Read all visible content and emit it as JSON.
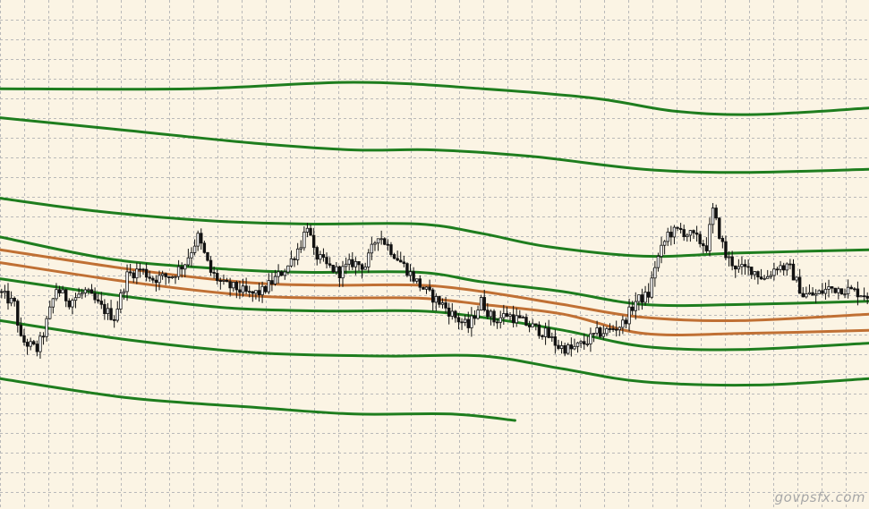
{
  "watermark": "govpsfx.com",
  "colors": {
    "background": "#fbf4e4",
    "grid": "#b9b9b9",
    "candle": "#111111",
    "band_outer": "#1e7d1e",
    "band_mid": "#1e7d1e",
    "band_inner": "#c07034"
  },
  "chart_data": {
    "type": "candlestick",
    "grid": true,
    "xlim": [
      0,
      270
    ],
    "ylim": [
      0,
      100
    ],
    "bands": [
      {
        "key": "g_top_1",
        "color_key": "band_outer",
        "points": [
          [
            0,
            103
          ],
          [
            60,
            103
          ],
          [
            110,
            105
          ],
          [
            150,
            103
          ],
          [
            185,
            100
          ],
          [
            210,
            96
          ],
          [
            235,
            95
          ],
          [
            270,
            97
          ]
        ]
      },
      {
        "key": "g_top_2",
        "color_key": "band_outer",
        "points": [
          [
            0,
            94
          ],
          [
            40,
            90
          ],
          [
            80,
            86
          ],
          [
            110,
            84
          ],
          [
            135,
            84
          ],
          [
            165,
            82
          ],
          [
            200,
            78
          ],
          [
            230,
            77
          ],
          [
            270,
            78
          ]
        ]
      },
      {
        "key": "g_top_3",
        "color_key": "band_outer",
        "points": [
          [
            0,
            69
          ],
          [
            30,
            65
          ],
          [
            65,
            62
          ],
          [
            95,
            61
          ],
          [
            130,
            61
          ],
          [
            150,
            58
          ],
          [
            170,
            54
          ],
          [
            200,
            51
          ],
          [
            230,
            52
          ],
          [
            270,
            53
          ]
        ]
      },
      {
        "key": "g_top_4",
        "color_key": "band_mid",
        "points": [
          [
            0,
            57
          ],
          [
            35,
            50
          ],
          [
            70,
            47
          ],
          [
            95,
            46
          ],
          [
            130,
            46
          ],
          [
            150,
            43
          ],
          [
            175,
            40
          ],
          [
            200,
            36
          ],
          [
            230,
            36
          ],
          [
            270,
            37
          ]
        ]
      },
      {
        "key": "o_top",
        "color_key": "band_inner",
        "points": [
          [
            0,
            53
          ],
          [
            40,
            47
          ],
          [
            75,
            43
          ],
          [
            100,
            42
          ],
          [
            130,
            42
          ],
          [
            150,
            40
          ],
          [
            175,
            36
          ],
          [
            200,
            32
          ],
          [
            230,
            31
          ],
          [
            270,
            33
          ]
        ]
      },
      {
        "key": "o_bot",
        "color_key": "band_inner",
        "points": [
          [
            0,
            49
          ],
          [
            40,
            43
          ],
          [
            75,
            39
          ],
          [
            100,
            38
          ],
          [
            130,
            38
          ],
          [
            150,
            36
          ],
          [
            175,
            33
          ],
          [
            200,
            27
          ],
          [
            230,
            27
          ],
          [
            270,
            28
          ]
        ]
      },
      {
        "key": "g_bot_1",
        "color_key": "band_mid",
        "points": [
          [
            0,
            44
          ],
          [
            35,
            39
          ],
          [
            70,
            35
          ],
          [
            100,
            34
          ],
          [
            130,
            34
          ],
          [
            150,
            32
          ],
          [
            175,
            28
          ],
          [
            200,
            23
          ],
          [
            230,
            22
          ],
          [
            270,
            24
          ]
        ]
      },
      {
        "key": "g_bot_2",
        "color_key": "band_outer",
        "points": [
          [
            0,
            31
          ],
          [
            40,
            25
          ],
          [
            80,
            21
          ],
          [
            120,
            20
          ],
          [
            150,
            20
          ],
          [
            175,
            16
          ],
          [
            200,
            12
          ],
          [
            235,
            11
          ],
          [
            270,
            13
          ]
        ]
      },
      {
        "key": "g_bot_3",
        "color_key": "band_outer",
        "points": [
          [
            0,
            13
          ],
          [
            40,
            7
          ],
          [
            80,
            4
          ],
          [
            110,
            2
          ],
          [
            140,
            2
          ],
          [
            160,
            0
          ]
        ]
      }
    ],
    "candles": {
      "count": 270,
      "anchors": [
        [
          0,
          40
        ],
        [
          5,
          36
        ],
        [
          7,
          25
        ],
        [
          12,
          22
        ],
        [
          14,
          27
        ],
        [
          18,
          41
        ],
        [
          22,
          37
        ],
        [
          27,
          40
        ],
        [
          32,
          35
        ],
        [
          36,
          32
        ],
        [
          40,
          45
        ],
        [
          44,
          47
        ],
        [
          48,
          44
        ],
        [
          54,
          45
        ],
        [
          58,
          49
        ],
        [
          62,
          57
        ],
        [
          66,
          46
        ],
        [
          70,
          42
        ],
        [
          74,
          41
        ],
        [
          78,
          39
        ],
        [
          82,
          40
        ],
        [
          86,
          44
        ],
        [
          90,
          48
        ],
        [
          94,
          55
        ],
        [
          96,
          61
        ],
        [
          98,
          52
        ],
        [
          102,
          48
        ],
        [
          106,
          46
        ],
        [
          110,
          49
        ],
        [
          114,
          48
        ],
        [
          118,
          58
        ],
        [
          122,
          53
        ],
        [
          126,
          48
        ],
        [
          130,
          43
        ],
        [
          134,
          39
        ],
        [
          138,
          36
        ],
        [
          142,
          32
        ],
        [
          146,
          29
        ],
        [
          150,
          37
        ],
        [
          154,
          31
        ],
        [
          158,
          33
        ],
        [
          162,
          31
        ],
        [
          166,
          29
        ],
        [
          170,
          27
        ],
        [
          174,
          23
        ],
        [
          178,
          22
        ],
        [
          182,
          24
        ],
        [
          186,
          27
        ],
        [
          190,
          28
        ],
        [
          194,
          30
        ],
        [
          198,
          37
        ],
        [
          202,
          39
        ],
        [
          204,
          48
        ],
        [
          208,
          58
        ],
        [
          212,
          59
        ],
        [
          216,
          57
        ],
        [
          220,
          54
        ],
        [
          222,
          65
        ],
        [
          226,
          51
        ],
        [
          230,
          47
        ],
        [
          234,
          47
        ],
        [
          238,
          44
        ],
        [
          242,
          48
        ],
        [
          246,
          47
        ],
        [
          250,
          39
        ],
        [
          254,
          39
        ],
        [
          258,
          41
        ],
        [
          262,
          41
        ],
        [
          266,
          40
        ],
        [
          270,
          39
        ]
      ],
      "volatility": 1.6
    }
  }
}
